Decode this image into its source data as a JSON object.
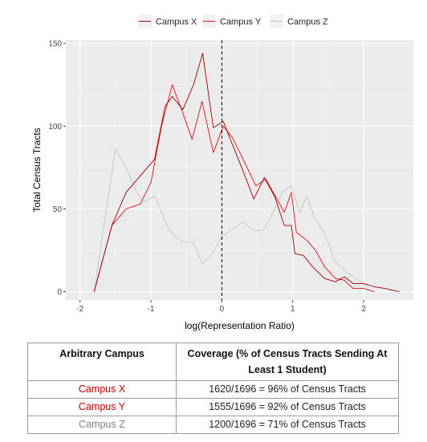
{
  "chart_data": {
    "type": "line",
    "xlabel": "log(Representation Ratio)",
    "ylabel": "Total Census Tracts",
    "xlim": [
      -2.2,
      2.7
    ],
    "ylim": [
      -5,
      152
    ],
    "xticks": [
      -2,
      -1,
      0,
      1,
      2
    ],
    "yticks": [
      0,
      50,
      100,
      150
    ],
    "xtick_labels": [
      "-2",
      "-1",
      "0",
      "1",
      "2"
    ],
    "ytick_labels": [
      "0",
      "50",
      "100",
      "150"
    ],
    "grid": true,
    "legend": {
      "position": "top",
      "entries": [
        "Campus X",
        "Campus Y",
        "Campus Z"
      ]
    },
    "vline": {
      "x": 0,
      "style": "dashed"
    },
    "series": [
      {
        "name": "Campus X",
        "color": "#a00000",
        "points": [
          [
            -1.8,
            0
          ],
          [
            -1.55,
            40
          ],
          [
            -1.35,
            60
          ],
          [
            -1.15,
            70
          ],
          [
            -0.95,
            80
          ],
          [
            -0.8,
            112
          ],
          [
            -0.7,
            118
          ],
          [
            -0.55,
            110
          ],
          [
            -0.4,
            125
          ],
          [
            -0.27,
            144
          ],
          [
            -0.12,
            99
          ],
          [
            0.02,
            103
          ],
          [
            0.12,
            92
          ],
          [
            0.28,
            75
          ],
          [
            0.45,
            56
          ],
          [
            0.6,
            69
          ],
          [
            0.75,
            57
          ],
          [
            0.88,
            40
          ],
          [
            0.98,
            40
          ],
          [
            1.03,
            23
          ],
          [
            1.15,
            22
          ],
          [
            1.28,
            15
          ],
          [
            1.45,
            8
          ],
          [
            1.6,
            6
          ],
          [
            1.73,
            9
          ],
          [
            1.85,
            5
          ],
          [
            2.0,
            5
          ],
          [
            2.15,
            3
          ],
          [
            2.3,
            2
          ],
          [
            2.5,
            0
          ]
        ]
      },
      {
        "name": "Campus Y",
        "color": "#e01010",
        "points": [
          [
            -1.8,
            0
          ],
          [
            -1.55,
            40
          ],
          [
            -1.35,
            50
          ],
          [
            -1.15,
            53
          ],
          [
            -1.0,
            66
          ],
          [
            -0.85,
            100
          ],
          [
            -0.7,
            125
          ],
          [
            -0.55,
            108
          ],
          [
            -0.42,
            92
          ],
          [
            -0.28,
            115
          ],
          [
            -0.12,
            84
          ],
          [
            0.02,
            100
          ],
          [
            0.15,
            93
          ],
          [
            0.3,
            80
          ],
          [
            0.48,
            64
          ],
          [
            0.62,
            68
          ],
          [
            0.75,
            58
          ],
          [
            0.88,
            48
          ],
          [
            0.98,
            60
          ],
          [
            1.05,
            36
          ],
          [
            1.2,
            31
          ],
          [
            1.32,
            25
          ],
          [
            1.45,
            15
          ],
          [
            1.6,
            8
          ],
          [
            1.72,
            7
          ],
          [
            1.85,
            2
          ],
          [
            2.0,
            2
          ],
          [
            2.15,
            0
          ]
        ]
      },
      {
        "name": "Campus Z",
        "color": "#c4c4c4",
        "points": [
          [
            -1.8,
            0
          ],
          [
            -1.6,
            58
          ],
          [
            -1.5,
            86
          ],
          [
            -1.35,
            75
          ],
          [
            -1.2,
            60
          ],
          [
            -1.1,
            54
          ],
          [
            -0.95,
            58
          ],
          [
            -0.85,
            48
          ],
          [
            -0.75,
            38
          ],
          [
            -0.65,
            33
          ],
          [
            -0.55,
            30
          ],
          [
            -0.4,
            30
          ],
          [
            -0.28,
            17
          ],
          [
            -0.15,
            22
          ],
          [
            0.0,
            33
          ],
          [
            0.12,
            37
          ],
          [
            0.3,
            42
          ],
          [
            0.45,
            37
          ],
          [
            0.58,
            37
          ],
          [
            0.7,
            46
          ],
          [
            0.85,
            60
          ],
          [
            0.98,
            64
          ],
          [
            1.1,
            48
          ],
          [
            1.2,
            58
          ],
          [
            1.3,
            45
          ],
          [
            1.45,
            35
          ],
          [
            1.6,
            18
          ],
          [
            1.75,
            12
          ],
          [
            1.9,
            8
          ],
          [
            2.05,
            3
          ]
        ]
      }
    ]
  },
  "table": {
    "headers": [
      "Arbitrary Campus",
      "Coverage (% of Census Tracts Sending At Least 1 Student)"
    ],
    "rows": [
      {
        "campus": "Campus X",
        "color": "#c00000",
        "coverage": "1620/1696 = 96% of Census Tracts"
      },
      {
        "campus": "Campus Y",
        "color": "#c00000",
        "coverage": "1555/1696 = 92% of Census Tracts"
      },
      {
        "campus": "Campus Z",
        "color": "#808080",
        "coverage": "1200/1696 = 71% of Census Tracts"
      }
    ]
  }
}
